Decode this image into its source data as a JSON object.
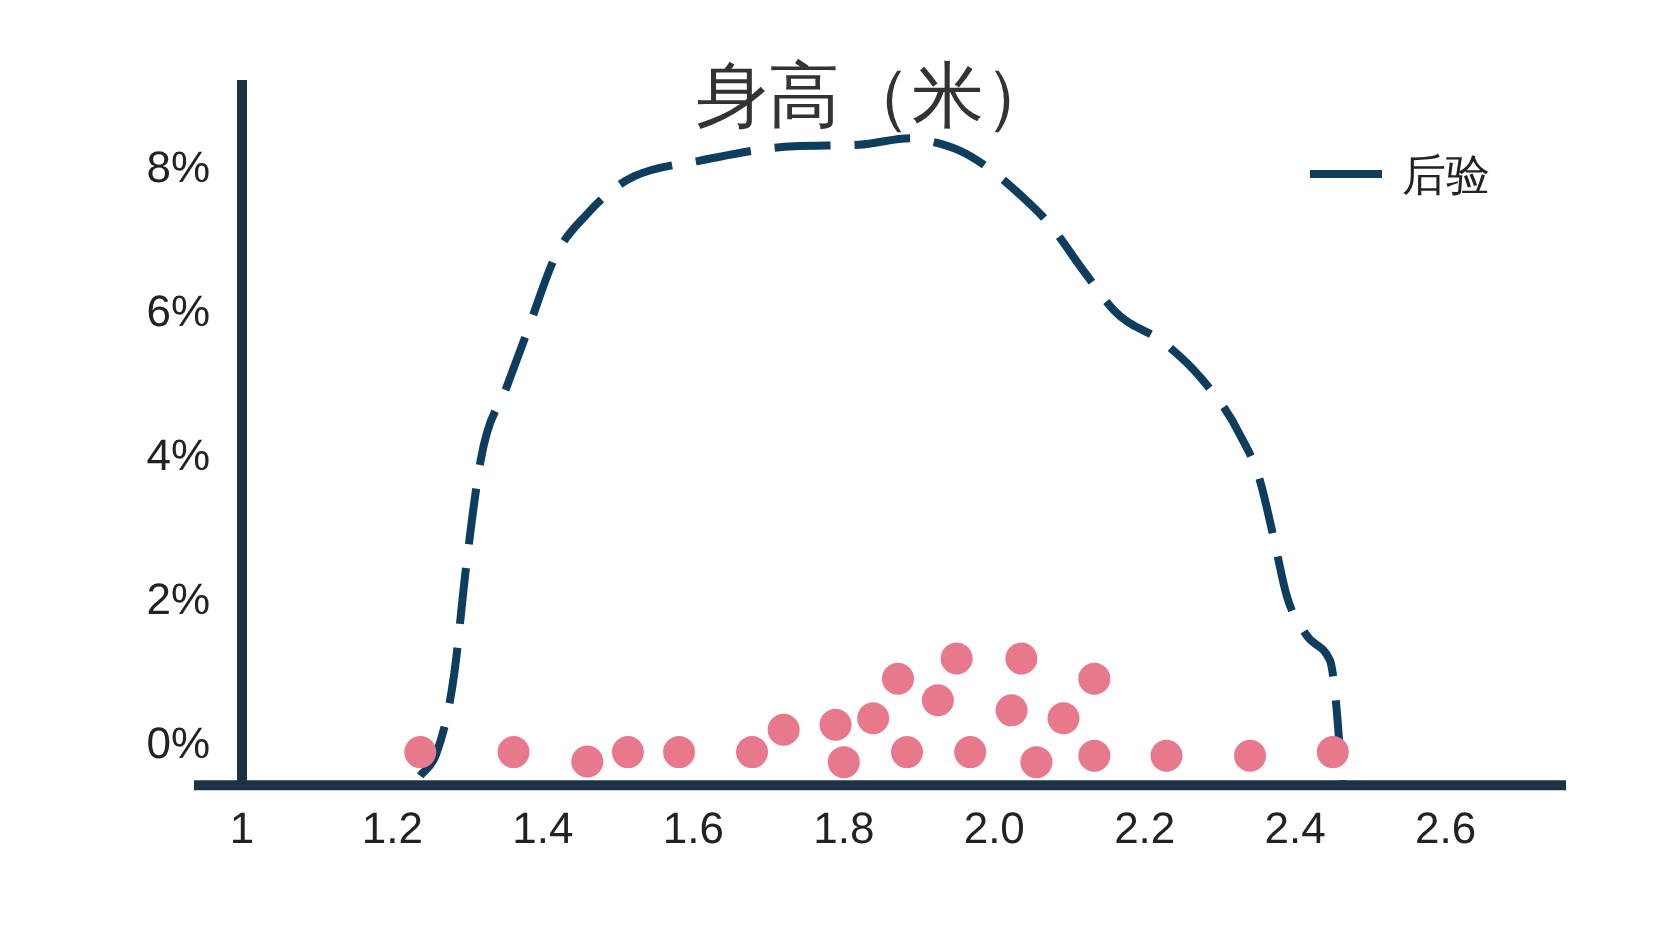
{
  "chart_data": {
    "type": "line",
    "title": "身高（米）",
    "xlim": [
      1,
      2.76
    ],
    "ylim": [
      -0.6,
      9.2
    ],
    "xticks": [
      1,
      1.2,
      1.4,
      1.6,
      1.8,
      {
        "value": 2,
        "label": "2.0"
      },
      2.2,
      2.4,
      2.6
    ],
    "yticks": [
      {
        "value": 0,
        "label": "0%"
      },
      {
        "value": 2,
        "label": "2%"
      },
      {
        "value": 4,
        "label": "4%"
      },
      {
        "value": 6,
        "label": "6%"
      },
      {
        "value": 8,
        "label": "8%"
      }
    ],
    "legend": "top right",
    "series": [
      {
        "name": "后验",
        "type": "line",
        "color": "#0e3d5e",
        "line_style": "dashed",
        "marker": "none",
        "x": [
          1.237,
          1.258,
          1.282,
          1.298,
          1.317,
          1.352,
          1.378,
          1.418,
          1.458,
          1.521,
          1.609,
          1.734,
          1.82,
          1.888,
          1.909,
          1.954,
          2.034,
          2.069,
          2.122,
          2.159,
          2.228,
          2.273,
          2.326,
          2.353,
          2.372,
          2.388,
          2.414,
          2.446,
          2.457,
          2.462
        ],
        "values": [
          -0.47,
          -0.17,
          0.94,
          2.44,
          3.9,
          4.94,
          5.67,
          6.78,
          7.33,
          7.86,
          8.08,
          8.28,
          8.3,
          8.39,
          8.36,
          8.22,
          7.61,
          7.25,
          6.5,
          6.0,
          5.53,
          5.08,
          4.28,
          3.64,
          2.81,
          2.06,
          1.5,
          1.14,
          0.22,
          -0.55
        ]
      },
      {
        "type": "scatter",
        "color": "#e8788c",
        "marker": "circle",
        "x": [
          1.237,
          1.361,
          1.459,
          1.513,
          1.581,
          1.678,
          1.72,
          1.789,
          1.8,
          1.839,
          1.872,
          1.884,
          1.925,
          1.95,
          1.968,
          2.023,
          2.036,
          2.056,
          2.092,
          2.133,
          2.133,
          2.229,
          2.34,
          2.45
        ],
        "values": [
          -0.14,
          -0.14,
          -0.27,
          -0.14,
          -0.14,
          -0.14,
          0.17,
          0.24,
          -0.28,
          0.33,
          0.88,
          -0.14,
          0.58,
          1.16,
          -0.14,
          0.44,
          1.16,
          -0.28,
          0.33,
          0.88,
          -0.19,
          -0.19,
          -0.19,
          -0.14
        ]
      }
    ]
  }
}
